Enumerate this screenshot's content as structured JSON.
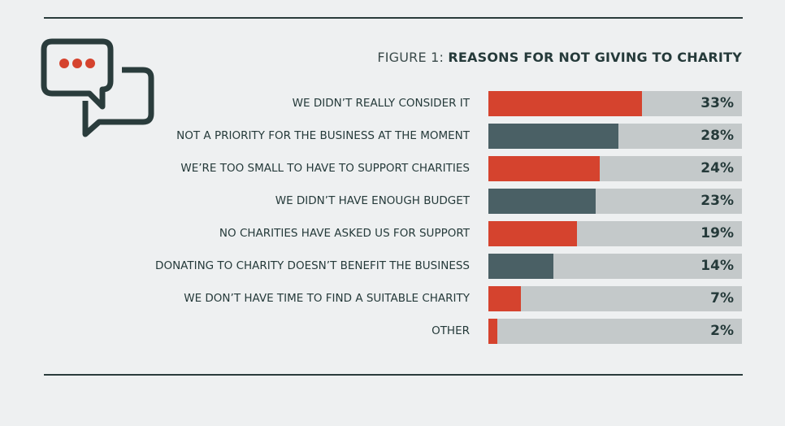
{
  "chart_data": {
    "type": "bar",
    "orientation": "horizontal",
    "title_prefix": "FIGURE 1:",
    "title": "REASONS FOR NOT GIVING TO CHARITY",
    "categories": [
      "WE DIDN’T REALLY CONSIDER IT",
      "NOT A PRIORITY FOR THE BUSINESS AT THE MOMENT",
      "WE’RE TOO SMALL TO HAVE TO SUPPORT CHARITIES",
      "WE DIDN’T HAVE ENOUGH BUDGET",
      "NO CHARITIES HAVE ASKED US FOR SUPPORT",
      "DONATING TO CHARITY DOESN’T BENEFIT THE BUSINESS",
      "WE DON’T HAVE TIME TO FIND A SUITABLE CHARITY",
      "OTHER"
    ],
    "values": [
      33,
      28,
      24,
      23,
      19,
      14,
      7,
      2
    ],
    "data_labels": [
      "33%",
      "28%",
      "24%",
      "23%",
      "19%",
      "14%",
      "7%",
      "2%"
    ],
    "bar_colors": [
      "#d5432e",
      "#4a6065",
      "#d5432e",
      "#4a6065",
      "#d5432e",
      "#4a6065",
      "#d5432e",
      "#d5432e"
    ],
    "track_color": "#c4c9ca",
    "grid": false,
    "legend": "none"
  },
  "icon": "speech-bubbles-icon",
  "colors": {
    "accent": "#d5432e",
    "dark": "#253a3a",
    "background": "#eef0f1"
  }
}
